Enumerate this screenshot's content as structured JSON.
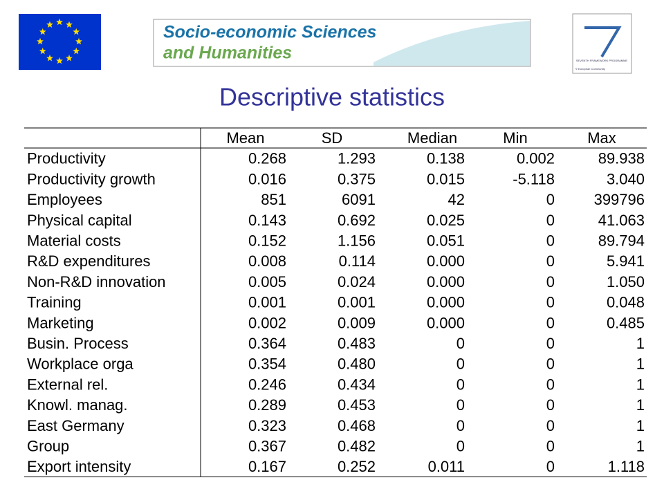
{
  "banner": {
    "line1": "Socio-economic Sciences",
    "line2": "and Humanities"
  },
  "fp7": {
    "name": "SEVENTH FRAMEWORK PROGRAMME",
    "copyright": "© European Community"
  },
  "title": "Descriptive statistics",
  "table": {
    "columns": [
      "Mean",
      "SD",
      "Median",
      "Min",
      "Max"
    ],
    "rows": [
      [
        "Productivity",
        "0.268",
        "1.293",
        "0.138",
        "0.002",
        "89.938"
      ],
      [
        "Productivity growth",
        "0.016",
        "0.375",
        "0.015",
        "-5.118",
        "3.040"
      ],
      [
        "Employees",
        "851",
        "6091",
        "42",
        "0",
        "399796"
      ],
      [
        "Physical capital",
        "0.143",
        "0.692",
        "0.025",
        "0",
        "41.063"
      ],
      [
        "Material costs",
        "0.152",
        "1.156",
        "0.051",
        "0",
        "89.794"
      ],
      [
        "R&D expenditures",
        "0.008",
        "0.114",
        "0.000",
        "0",
        "5.941"
      ],
      [
        "Non-R&D innovation",
        "0.005",
        "0.024",
        "0.000",
        "0",
        "1.050"
      ],
      [
        "Training",
        "0.001",
        "0.001",
        "0.000",
        "0",
        "0.048"
      ],
      [
        "Marketing",
        "0.002",
        "0.009",
        "0.000",
        "0",
        "0.485"
      ],
      [
        "Busin. Process",
        "0.364",
        "0.483",
        "0",
        "0",
        "1"
      ],
      [
        "Workplace orga",
        "0.354",
        "0.480",
        "0",
        "0",
        "1"
      ],
      [
        "External rel.",
        "0.246",
        "0.434",
        "0",
        "0",
        "1"
      ],
      [
        "Knowl. manag.",
        "0.289",
        "0.453",
        "0",
        "0",
        "1"
      ],
      [
        "East Germany",
        "0.323",
        "0.468",
        "0",
        "0",
        "1"
      ],
      [
        "Group",
        "0.367",
        "0.482",
        "0",
        "0",
        "1"
      ],
      [
        "Export intensity",
        "0.167",
        "0.252",
        "0.011",
        "0",
        "1.118"
      ]
    ]
  }
}
